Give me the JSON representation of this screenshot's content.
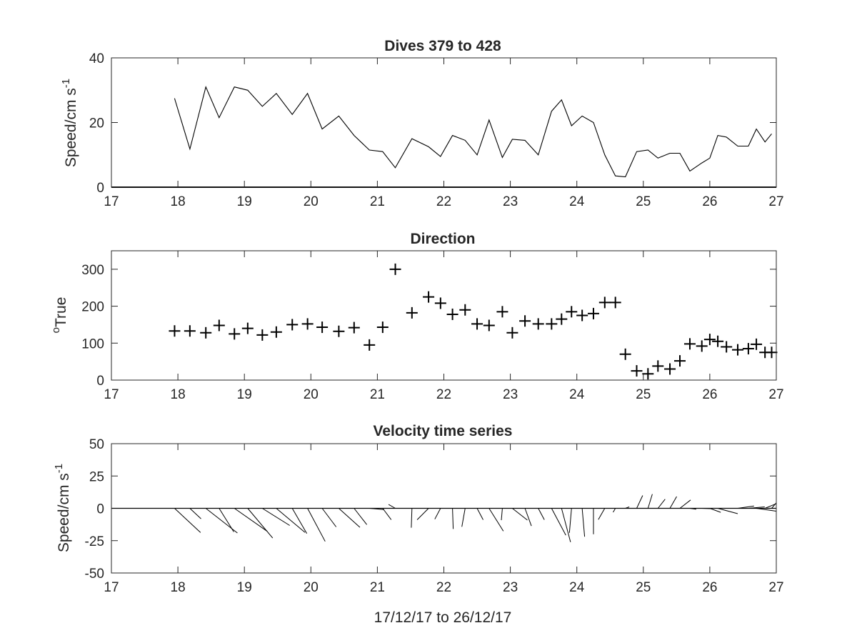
{
  "chart_data": [
    {
      "type": "line",
      "title": "Dives 379 to 428",
      "ylabel": "Speed/cm s",
      "ylabel_sup": "-1",
      "xlim": [
        17,
        27
      ],
      "ylim": [
        0,
        40
      ],
      "xticks": [
        "17",
        "18",
        "19",
        "20",
        "21",
        "22",
        "23",
        "24",
        "25",
        "26",
        "27"
      ],
      "yticks": [
        "0",
        "20",
        "40"
      ],
      "x": [
        17.95,
        18.18,
        18.42,
        18.62,
        18.85,
        19.05,
        19.27,
        19.48,
        19.72,
        19.95,
        20.17,
        20.42,
        20.65,
        20.88,
        21.08,
        21.27,
        21.52,
        21.77,
        21.95,
        22.13,
        22.32,
        22.5,
        22.68,
        22.88,
        23.03,
        23.22,
        23.42,
        23.62,
        23.77,
        23.92,
        24.08,
        24.25,
        24.42,
        24.58,
        24.73,
        24.9,
        25.07,
        25.22,
        25.4,
        25.55,
        25.7,
        25.88,
        26.0,
        26.12,
        26.25,
        26.42,
        26.58,
        26.7,
        26.83,
        26.93
      ],
      "values": [
        27.5,
        11.8,
        31.0,
        21.5,
        31.0,
        30.0,
        25.0,
        29.0,
        22.5,
        29.0,
        18.0,
        22.0,
        16.0,
        11.5,
        11.0,
        6.0,
        15.0,
        12.5,
        9.5,
        16.0,
        14.5,
        10.0,
        20.8,
        9.2,
        14.8,
        14.5,
        10.0,
        23.5,
        27.0,
        19.0,
        22.0,
        20.0,
        10.0,
        3.5,
        3.2,
        11.0,
        11.5,
        9.0,
        10.5,
        10.5,
        5.0,
        7.5,
        9.0,
        16.0,
        15.5,
        12.7,
        12.7,
        18.0,
        14.0,
        16.5
      ]
    },
    {
      "type": "scatter",
      "title": "Direction",
      "ylabel": "True",
      "ylabel_sup": "o",
      "xlim": [
        17,
        27
      ],
      "ylim": [
        0,
        350
      ],
      "xticks": [
        "17",
        "18",
        "19",
        "20",
        "21",
        "22",
        "23",
        "24",
        "25",
        "26",
        "27"
      ],
      "yticks": [
        "0",
        "100",
        "200",
        "300"
      ],
      "x": [
        17.95,
        18.18,
        18.42,
        18.62,
        18.85,
        19.05,
        19.27,
        19.48,
        19.72,
        19.95,
        20.17,
        20.42,
        20.65,
        20.88,
        21.08,
        21.27,
        21.52,
        21.77,
        21.95,
        22.13,
        22.32,
        22.5,
        22.68,
        22.88,
        23.03,
        23.22,
        23.42,
        23.62,
        23.77,
        23.92,
        24.08,
        24.25,
        24.42,
        24.58,
        24.73,
        24.9,
        25.07,
        25.22,
        25.4,
        25.55,
        25.7,
        25.88,
        26.0,
        26.12,
        26.25,
        26.42,
        26.58,
        26.7,
        26.83,
        26.93
      ],
      "values": [
        133,
        133,
        128,
        148,
        125,
        140,
        122,
        130,
        150,
        152,
        143,
        132,
        142,
        95,
        143,
        300,
        182,
        225,
        208,
        178,
        190,
        152,
        148,
        185,
        128,
        160,
        152,
        152,
        165,
        185,
        175,
        180,
        210,
        210,
        70,
        25,
        17,
        38,
        30,
        52,
        98,
        92,
        110,
        105,
        90,
        82,
        85,
        97,
        75,
        75
      ]
    },
    {
      "type": "quiver",
      "title": "Velocity time series",
      "ylabel": "Speed/cm s",
      "ylabel_sup": "-1",
      "xlabel": "17/12/17 to 26/12/17",
      "xlim": [
        17,
        27
      ],
      "ylim": [
        -50,
        50
      ],
      "xticks": [
        "17",
        "18",
        "19",
        "20",
        "21",
        "22",
        "23",
        "24",
        "25",
        "26",
        "27"
      ],
      "yticks": [
        "-50",
        "-25",
        "0",
        "25",
        "50"
      ],
      "x": [
        17.95,
        18.18,
        18.42,
        18.62,
        18.85,
        19.05,
        19.27,
        19.48,
        19.72,
        19.95,
        20.17,
        20.42,
        20.65,
        20.88,
        21.08,
        21.27,
        21.52,
        21.77,
        21.95,
        22.13,
        22.32,
        22.5,
        22.68,
        22.88,
        23.03,
        23.22,
        23.42,
        23.62,
        23.77,
        23.92,
        24.08,
        24.25,
        24.42,
        24.58,
        24.73,
        24.9,
        25.07,
        25.22,
        25.4,
        25.55,
        25.7,
        25.88,
        26.0,
        26.12,
        26.25,
        26.42,
        26.58,
        26.7,
        26.83,
        26.93
      ],
      "speed": [
        27.5,
        11.8,
        31.0,
        21.5,
        31.0,
        30.0,
        25.0,
        29.0,
        22.5,
        29.0,
        18.0,
        22.0,
        16.0,
        11.5,
        11.0,
        6.0,
        15.0,
        12.5,
        9.5,
        16.0,
        14.5,
        10.0,
        20.8,
        9.2,
        14.8,
        14.5,
        10.0,
        23.5,
        27.0,
        19.0,
        22.0,
        20.0,
        10.0,
        3.5,
        3.2,
        11.0,
        11.5,
        9.0,
        10.5,
        10.5,
        5.0,
        7.5,
        9.0,
        16.0,
        15.5,
        12.7,
        12.7,
        18.0,
        14.0,
        16.5
      ],
      "direction": [
        133,
        133,
        128,
        148,
        125,
        140,
        122,
        130,
        150,
        152,
        143,
        132,
        142,
        95,
        143,
        300,
        182,
        225,
        208,
        178,
        190,
        152,
        148,
        185,
        128,
        160,
        152,
        152,
        165,
        185,
        175,
        180,
        210,
        210,
        70,
        25,
        17,
        38,
        30,
        52,
        98,
        92,
        110,
        105,
        90,
        82,
        85,
        97,
        75,
        75
      ]
    }
  ]
}
